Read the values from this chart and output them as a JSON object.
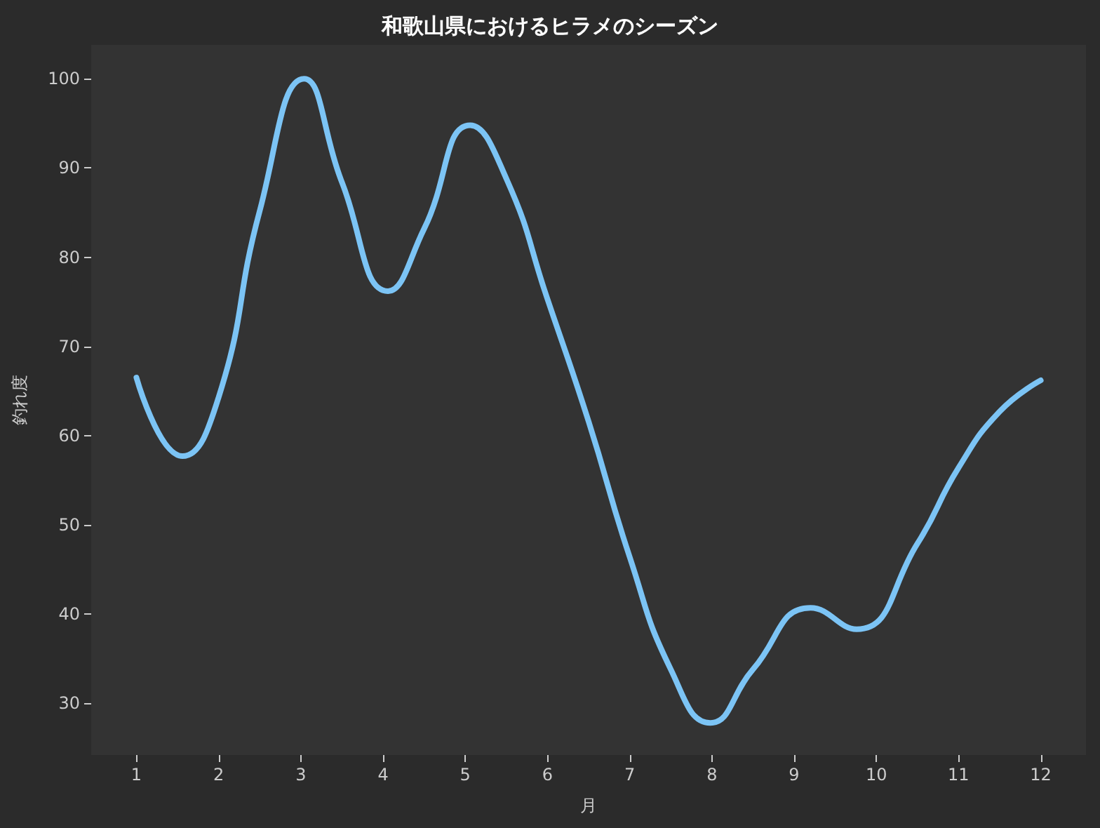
{
  "chart_data": {
    "type": "line",
    "title": "和歌山県におけるヒラメのシーズン",
    "xlabel": "月",
    "ylabel": "釣れ度",
    "x": [
      1,
      1.56,
      2,
      2.5,
      3.04,
      3.5,
      4.06,
      4.5,
      5.06,
      5.5,
      6,
      6.5,
      7,
      7.5,
      7.98,
      8.5,
      9.2,
      9.76,
      10.5,
      11,
      11.5,
      12
    ],
    "series": [
      {
        "color": "#7cc4f5",
        "values": [
          66.5,
          57.7,
          64.3,
          85.2,
          100,
          88.4,
          76.2,
          83.2,
          94.8,
          88.8,
          75.3,
          61.6,
          46.4,
          33.8,
          27.8,
          33.8,
          40.7,
          38.3,
          47.9,
          56.4,
          62.7,
          66.2
        ]
      }
    ],
    "xlim": [
      0.45,
      12.55
    ],
    "ylim": [
      24.2,
      103.8
    ],
    "xticks": [
      1,
      2,
      3,
      4,
      5,
      6,
      7,
      8,
      9,
      10,
      11,
      12
    ],
    "yticks": [
      30,
      40,
      50,
      60,
      70,
      80,
      90,
      100
    ],
    "grid": false,
    "marker": "none",
    "line_style": "solid"
  }
}
